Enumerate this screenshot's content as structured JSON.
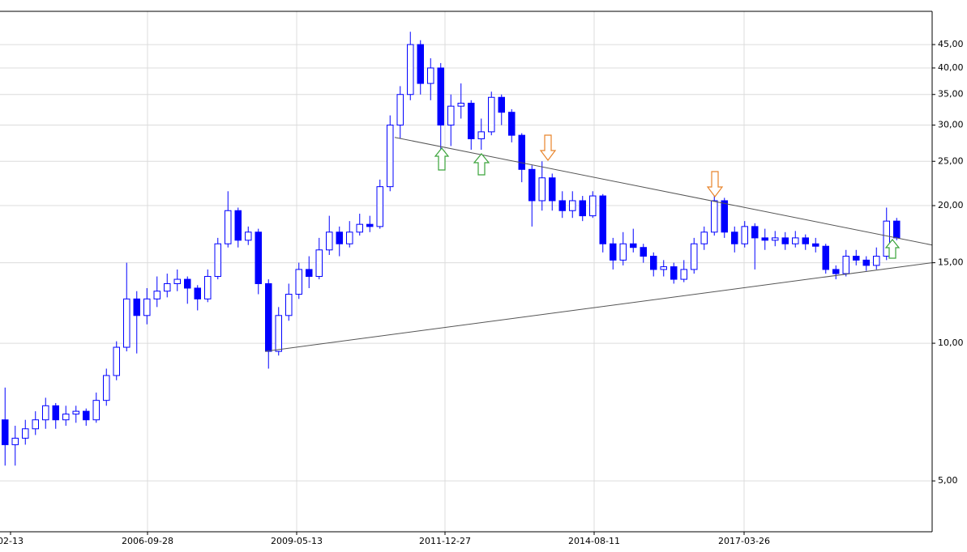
{
  "chart_data": {
    "type": "candlestick",
    "ylog": true,
    "grid": true,
    "up_color": "#ffffff",
    "down_color": "#0000ff",
    "edge_color": "#0000ff",
    "wick_color": "#0000ff",
    "trendline_color": "#555555",
    "xlim": [
      -0.5,
      91.5
    ],
    "ylim": [
      3.87,
      53.2
    ],
    "yticks": [
      {
        "value": 5,
        "label": "5,00"
      },
      {
        "value": 10,
        "label": "10,00"
      },
      {
        "value": 15,
        "label": "15,00"
      },
      {
        "value": 20,
        "label": "20,00"
      },
      {
        "value": 25,
        "label": "25,00"
      },
      {
        "value": 30,
        "label": "30,00"
      },
      {
        "value": 35,
        "label": "35,00"
      },
      {
        "value": 40,
        "label": "40,00"
      },
      {
        "value": 45,
        "label": "45,00"
      }
    ],
    "xticks": [
      {
        "value": 0.54,
        "label": "02-13"
      },
      {
        "value": 14.06,
        "label": "2006-09-28"
      },
      {
        "value": 28.78,
        "label": "2009-05-13"
      },
      {
        "value": 43.42,
        "label": "2011-12-27"
      },
      {
        "value": 58.14,
        "label": "2014-08-11"
      },
      {
        "value": 72.94,
        "label": "2017-03-26"
      }
    ],
    "open": [
      6.8,
      6.0,
      6.2,
      6.5,
      6.8,
      7.3,
      6.8,
      7.0,
      7.1,
      6.8,
      7.5,
      8.5,
      9.8,
      12.5,
      11.5,
      12.5,
      13.0,
      13.5,
      13.8,
      13.2,
      12.5,
      14.0,
      16.5,
      19.5,
      16.8,
      17.5,
      13.5,
      9.6,
      11.5,
      12.8,
      14.5,
      14.0,
      16.0,
      17.5,
      16.5,
      17.5,
      18.2,
      18.0,
      22.0,
      30.0,
      35.0,
      45.0,
      37.0,
      40.0,
      30.0,
      33.0,
      33.5,
      28.0,
      29.0,
      34.5,
      32.0,
      28.5,
      24.0,
      20.5,
      23.0,
      20.5,
      19.5,
      20.5,
      19.0,
      21.0,
      16.5,
      15.2,
      16.5,
      16.2,
      15.5,
      14.5,
      14.7,
      13.8,
      14.5,
      16.5,
      17.5,
      20.5,
      17.5,
      16.5,
      18.0,
      17.0,
      16.8,
      17.0,
      16.5,
      17.0,
      16.5,
      16.3,
      14.5,
      14.2,
      15.5,
      15.2,
      14.8,
      15.5,
      18.5
    ],
    "high": [
      8.0,
      6.6,
      6.8,
      7.1,
      7.6,
      7.4,
      7.3,
      7.3,
      7.2,
      7.8,
      8.8,
      10.1,
      15.0,
      13.0,
      13.2,
      14.0,
      14.2,
      14.5,
      14.0,
      13.4,
      14.5,
      17.0,
      21.5,
      19.8,
      18.0,
      17.8,
      13.8,
      12.0,
      13.5,
      15.0,
      15.5,
      17.0,
      19.0,
      18.0,
      18.5,
      19.2,
      19.0,
      22.8,
      31.5,
      36.5,
      48.0,
      46.0,
      42.0,
      41.0,
      35.0,
      37.0,
      34.0,
      31.0,
      35.5,
      35.0,
      32.5,
      28.8,
      24.5,
      25.0,
      23.5,
      21.5,
      21.5,
      21.0,
      21.5,
      21.2,
      17.0,
      17.5,
      17.8,
      16.5,
      15.8,
      15.2,
      15.0,
      15.2,
      17.0,
      18.0,
      21.5,
      20.8,
      18.0,
      18.5,
      18.3,
      17.8,
      17.6,
      17.5,
      17.6,
      17.3,
      17.0,
      16.5,
      14.8,
      16.0,
      16.0,
      15.5,
      16.2,
      19.8,
      18.8
    ],
    "low": [
      5.4,
      5.4,
      6.0,
      6.3,
      6.5,
      6.5,
      6.6,
      6.7,
      6.6,
      6.7,
      7.3,
      8.3,
      9.6,
      9.5,
      11.0,
      12.0,
      12.6,
      13.0,
      12.2,
      11.8,
      12.3,
      13.8,
      16.2,
      16.2,
      16.4,
      12.8,
      8.8,
      9.4,
      11.2,
      12.5,
      13.2,
      13.8,
      15.6,
      15.5,
      16.2,
      17.2,
      17.5,
      17.8,
      21.5,
      28.0,
      34.0,
      35.0,
      34.0,
      26.0,
      27.0,
      31.0,
      26.5,
      26.5,
      28.5,
      30.0,
      27.5,
      22.5,
      18.0,
      19.5,
      19.5,
      18.8,
      18.8,
      18.5,
      18.8,
      15.8,
      14.5,
      14.8,
      15.8,
      15.0,
      14.0,
      14.0,
      13.5,
      13.6,
      14.2,
      16.0,
      17.2,
      17.0,
      15.8,
      16.2,
      14.5,
      16.0,
      16.3,
      16.0,
      16.2,
      16.0,
      15.8,
      14.2,
      13.8,
      14.0,
      14.8,
      14.4,
      14.5,
      15.2,
      16.8
    ],
    "close": [
      6.0,
      6.2,
      6.5,
      6.8,
      7.3,
      6.8,
      7.0,
      7.1,
      6.8,
      7.5,
      8.5,
      9.8,
      12.5,
      11.5,
      12.5,
      13.0,
      13.5,
      13.8,
      13.2,
      12.5,
      14.0,
      16.5,
      19.5,
      16.8,
      17.5,
      13.5,
      9.6,
      11.5,
      12.8,
      14.5,
      14.0,
      16.0,
      17.5,
      16.5,
      17.5,
      18.2,
      18.0,
      22.0,
      30.0,
      35.0,
      45.0,
      37.0,
      40.0,
      30.0,
      33.0,
      33.5,
      28.0,
      29.0,
      34.5,
      32.0,
      28.5,
      24.0,
      20.5,
      23.0,
      20.5,
      19.5,
      20.5,
      19.0,
      21.0,
      16.5,
      15.2,
      16.5,
      16.2,
      15.5,
      14.5,
      14.7,
      13.8,
      14.5,
      16.5,
      17.5,
      20.5,
      17.5,
      16.5,
      18.0,
      17.0,
      16.8,
      17.0,
      16.5,
      17.0,
      16.5,
      16.3,
      14.5,
      14.2,
      15.5,
      15.2,
      14.8,
      15.5,
      18.5,
      17.0
    ],
    "trendlines": [
      {
        "x": [
          38.46,
          91.5
        ],
        "y": [
          28.2,
          16.4
        ]
      },
      {
        "x": [
          25.66,
          91.5
        ],
        "y": [
          9.6,
          15.0
        ]
      }
    ]
  }
}
